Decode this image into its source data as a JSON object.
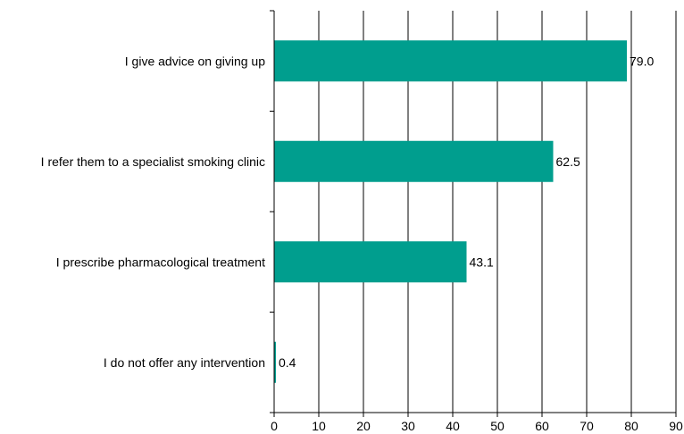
{
  "chart_data": {
    "type": "bar",
    "orientation": "horizontal",
    "title": "",
    "xlabel": "",
    "ylabel": "",
    "categories": [
      "I give advice on giving up",
      "I refer them to a specialist smoking clinic",
      "I prescribe pharmacological treatment",
      "I do not offer any intervention"
    ],
    "values": [
      79.0,
      62.5,
      43.1,
      0.4
    ],
    "value_labels": [
      "79.0",
      "62.5",
      "43.1",
      "0.4"
    ],
    "xlim": [
      0,
      90
    ],
    "xticks": [
      0,
      10,
      20,
      30,
      40,
      50,
      60,
      70,
      80,
      90
    ],
    "xtick_labels": [
      "0",
      "10",
      "20",
      "30",
      "40",
      "50",
      "60",
      "70",
      "80",
      "90"
    ],
    "grid": "vertical",
    "bar_color": "#009e8e",
    "legend": "none"
  }
}
